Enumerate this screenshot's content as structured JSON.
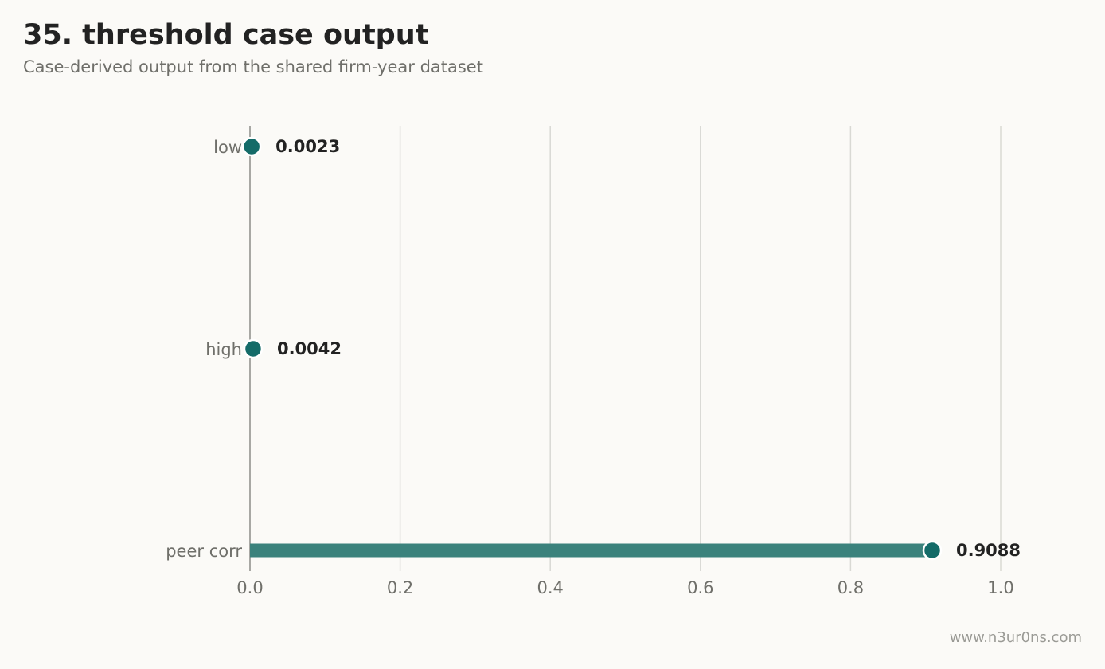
{
  "header": {
    "title": "35. threshold case output",
    "subtitle": "Case-derived output from the shared firm-year dataset"
  },
  "footer": {
    "watermark": "www.n3ur0ns.com"
  },
  "colors": {
    "accent": "#146b68",
    "bar": "#3b827c",
    "grid": "#d9d9d4",
    "axis": "#8c8c88"
  },
  "chart_data": {
    "type": "bar",
    "orientation": "horizontal",
    "style": "lollipop",
    "categories": [
      "low",
      "high",
      "peer corr"
    ],
    "values": [
      0.0023,
      0.0042,
      0.9088
    ],
    "value_labels": [
      "0.0023",
      "0.0042",
      "0.9088"
    ],
    "xlim": [
      0,
      1.0
    ],
    "x_ticks": [
      0.0,
      0.2,
      0.4,
      0.6,
      0.8,
      1.0
    ],
    "x_tick_labels": [
      "0.0",
      "0.2",
      "0.4",
      "0.6",
      "0.8",
      "1.0"
    ],
    "grid": "vertical",
    "legend": "none"
  }
}
